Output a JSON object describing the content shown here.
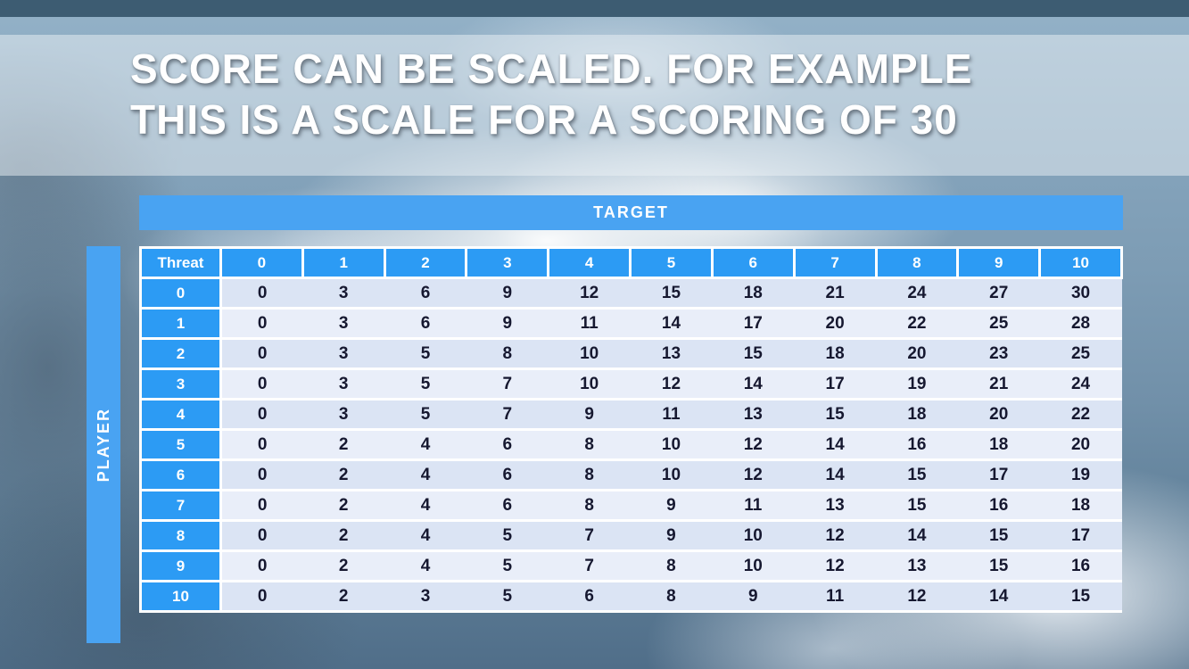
{
  "slide": {
    "title_line1": "SCORE CAN BE SCALED. FOR EXAMPLE",
    "title_line2": "THIS IS A SCALE FOR A SCORING OF 30"
  },
  "table": {
    "target_label": "TARGET",
    "player_label": "PLAYER",
    "corner_label": "Threat",
    "column_headers": [
      "0",
      "1",
      "2",
      "3",
      "4",
      "5",
      "6",
      "7",
      "8",
      "9",
      "10"
    ],
    "rows": [
      {
        "threat": "0",
        "values": [
          0,
          3,
          6,
          9,
          12,
          15,
          18,
          21,
          24,
          27,
          30
        ]
      },
      {
        "threat": "1",
        "values": [
          0,
          3,
          6,
          9,
          11,
          14,
          17,
          20,
          22,
          25,
          28
        ]
      },
      {
        "threat": "2",
        "values": [
          0,
          3,
          5,
          8,
          10,
          13,
          15,
          18,
          20,
          23,
          25
        ]
      },
      {
        "threat": "3",
        "values": [
          0,
          3,
          5,
          7,
          10,
          12,
          14,
          17,
          19,
          21,
          24
        ]
      },
      {
        "threat": "4",
        "values": [
          0,
          3,
          5,
          7,
          9,
          11,
          13,
          15,
          18,
          20,
          22
        ]
      },
      {
        "threat": "5",
        "values": [
          0,
          2,
          4,
          6,
          8,
          10,
          12,
          14,
          16,
          18,
          20
        ]
      },
      {
        "threat": "6",
        "values": [
          0,
          2,
          4,
          6,
          8,
          10,
          12,
          14,
          15,
          17,
          19
        ]
      },
      {
        "threat": "7",
        "values": [
          0,
          2,
          4,
          6,
          8,
          9,
          11,
          13,
          15,
          16,
          18
        ]
      },
      {
        "threat": "8",
        "values": [
          0,
          2,
          4,
          5,
          7,
          9,
          10,
          12,
          14,
          15,
          17
        ]
      },
      {
        "threat": "9",
        "values": [
          0,
          2,
          4,
          5,
          7,
          8,
          10,
          12,
          13,
          15,
          16
        ]
      },
      {
        "threat": "10",
        "values": [
          0,
          2,
          3,
          5,
          6,
          8,
          9,
          11,
          12,
          14,
          15
        ]
      }
    ]
  },
  "colors": {
    "top_bar": "#3d5c72",
    "bar_blue": "#49a3f2",
    "header_blue": "#2c9bf4",
    "row_even": "#dbe4f4",
    "row_odd": "#e9eef9",
    "body_text": "#161830"
  }
}
